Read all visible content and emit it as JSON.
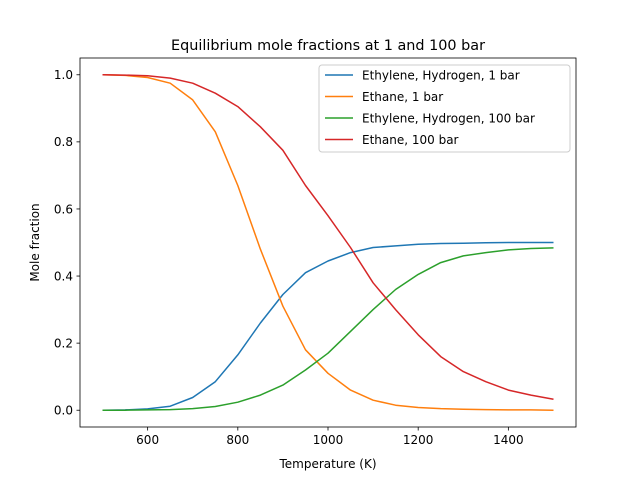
{
  "chart_data": {
    "type": "line",
    "title": "Equilibrium mole fractions at 1 and 100 bar",
    "xlabel": "Temperature (K)",
    "ylabel": "Mole fraction",
    "xlim": [
      450,
      1550
    ],
    "ylim": [
      -0.05,
      1.05
    ],
    "xticks": [
      600,
      800,
      1000,
      1200,
      1400
    ],
    "yticks": [
      0.0,
      0.2,
      0.4,
      0.6,
      0.8,
      1.0
    ],
    "xtick_labels": [
      "600",
      "800",
      "1000",
      "1200",
      "1400"
    ],
    "ytick_labels": [
      "0.0",
      "0.2",
      "0.4",
      "0.6",
      "0.8",
      "1.0"
    ],
    "grid": false,
    "legend_position": "top-right",
    "x": [
      500,
      550,
      600,
      650,
      700,
      750,
      800,
      850,
      900,
      950,
      1000,
      1050,
      1100,
      1150,
      1200,
      1250,
      1300,
      1350,
      1400,
      1450,
      1500
    ],
    "series": [
      {
        "name": "Ethylene, Hydrogen, 1 bar",
        "color": "#1f77b4",
        "values": [
          0.0,
          0.001,
          0.004,
          0.012,
          0.038,
          0.085,
          0.165,
          0.26,
          0.345,
          0.41,
          0.445,
          0.47,
          0.485,
          0.49,
          0.495,
          0.497,
          0.498,
          0.499,
          0.5,
          0.5,
          0.5
        ]
      },
      {
        "name": "Ethane, 1 bar",
        "color": "#ff7f0e",
        "values": [
          1.0,
          0.998,
          0.992,
          0.975,
          0.925,
          0.83,
          0.67,
          0.48,
          0.31,
          0.18,
          0.11,
          0.06,
          0.03,
          0.015,
          0.008,
          0.005,
          0.003,
          0.002,
          0.001,
          0.001,
          0.0
        ]
      },
      {
        "name": "Ethylene, Hydrogen, 100 bar",
        "color": "#2ca02c",
        "values": [
          0.0,
          0.0,
          0.001,
          0.002,
          0.005,
          0.011,
          0.024,
          0.045,
          0.075,
          0.12,
          0.17,
          0.235,
          0.3,
          0.36,
          0.405,
          0.44,
          0.46,
          0.47,
          0.478,
          0.482,
          0.484
        ]
      },
      {
        "name": "Ethane, 100 bar",
        "color": "#d62728",
        "values": [
          1.0,
          0.999,
          0.997,
          0.99,
          0.975,
          0.945,
          0.905,
          0.845,
          0.775,
          0.67,
          0.58,
          0.485,
          0.38,
          0.3,
          0.225,
          0.16,
          0.115,
          0.085,
          0.06,
          0.045,
          0.033
        ]
      }
    ]
  }
}
